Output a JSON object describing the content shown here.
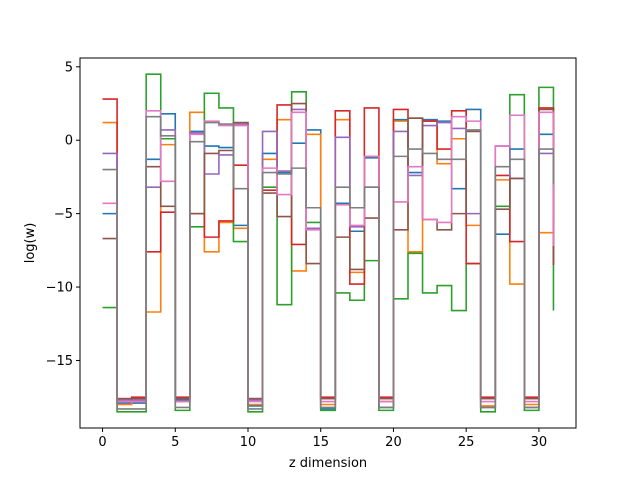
{
  "chart_data": {
    "type": "line",
    "step": "post",
    "xlabel": "z dimension",
    "ylabel": "log(w)",
    "xlim": [
      -1.55,
      32.55
    ],
    "ylim": [
      -19.6,
      5.6
    ],
    "xticks": [
      0,
      5,
      10,
      15,
      20,
      25,
      30
    ],
    "yticks": [
      5,
      0,
      -5,
      -10,
      -15
    ],
    "ytick_labels": [
      "5",
      "0",
      "−5",
      "−10",
      "−15"
    ],
    "grid": false,
    "colors": [
      "#1f77b4",
      "#ff7f0e",
      "#2ca02c",
      "#d62728",
      "#9467bd",
      "#8c564b",
      "#e377c2",
      "#7f7f7f"
    ],
    "series": [
      {
        "values": [
          -5.0,
          -17.9,
          -17.9,
          -1.3,
          1.8,
          -17.7,
          0.6,
          -0.4,
          -0.5,
          -5.8,
          -18.1,
          -0.9,
          -2.2,
          -0.2,
          0.7,
          -18.3,
          -4.3,
          -6.2,
          -1.2,
          -18.2,
          1.4,
          -2.2,
          1.4,
          1.3,
          -3.3,
          2.1,
          -18.2,
          -6.4,
          -0.6,
          -18.2,
          0.4,
          -5.7
        ]
      },
      {
        "values": [
          1.2,
          -18.0,
          -17.8,
          -11.7,
          -0.3,
          -17.8,
          1.9,
          -7.6,
          -5.6,
          -6.0,
          -18.0,
          -1.3,
          1.4,
          -8.9,
          0.4,
          -18.0,
          1.4,
          -9.0,
          -1.1,
          -17.8,
          1.3,
          -7.6,
          1.3,
          -1.6,
          0.1,
          -5.8,
          -18.1,
          -2.7,
          -9.8,
          -18.0,
          -6.3,
          -8.2
        ]
      },
      {
        "values": [
          -11.4,
          -18.5,
          -18.5,
          4.5,
          0.1,
          -18.4,
          -5.9,
          3.2,
          2.2,
          -6.9,
          -18.5,
          -3.2,
          -11.2,
          3.3,
          -5.6,
          -18.4,
          -10.4,
          -10.9,
          -8.2,
          -18.4,
          -10.8,
          -7.7,
          -10.4,
          -9.9,
          -11.6,
          -8.4,
          -18.5,
          -4.5,
          3.1,
          -18.4,
          3.6,
          -11.6
        ]
      },
      {
        "values": [
          2.8,
          -17.6,
          -17.5,
          -7.6,
          -4.9,
          -17.5,
          -5.0,
          -6.6,
          -5.5,
          -1.7,
          -17.6,
          -3.4,
          2.4,
          -7.1,
          -6.0,
          -17.5,
          2.0,
          -9.8,
          2.2,
          -17.5,
          2.1,
          1.5,
          1.3,
          -0.6,
          2.0,
          -8.4,
          -17.5,
          -2.4,
          -6.9,
          -17.5,
          2.2,
          -8.5
        ]
      },
      {
        "values": [
          -0.9,
          -17.7,
          -17.7,
          -3.2,
          0.7,
          -17.6,
          0.5,
          -2.3,
          -1.0,
          1.1,
          -17.7,
          0.6,
          -2.1,
          2.1,
          -6.0,
          -17.6,
          0.2,
          -5.9,
          -3.2,
          -17.6,
          0.6,
          -2.4,
          1.0,
          1.2,
          0.8,
          -5.0,
          -17.6,
          -0.4,
          -2.6,
          -17.6,
          -0.9,
          -2.9
        ]
      },
      {
        "values": [
          -6.7,
          -17.6,
          -17.6,
          -1.8,
          -4.5,
          -17.6,
          -5.0,
          -0.9,
          -0.7,
          1.2,
          -17.6,
          -3.6,
          -5.2,
          2.5,
          -8.4,
          -17.6,
          -6.6,
          -8.8,
          -5.3,
          -17.6,
          -6.1,
          1.5,
          -5.4,
          -6.1,
          -5.0,
          0.6,
          -17.6,
          -4.7,
          -2.6,
          -17.6,
          2.1,
          -8.4
        ]
      },
      {
        "values": [
          -4.3,
          -17.8,
          -17.8,
          2.0,
          -2.8,
          -17.8,
          0.4,
          1.3,
          1.0,
          1.0,
          -17.8,
          -1.9,
          -3.7,
          1.9,
          -6.1,
          -17.8,
          -4.4,
          -5.8,
          -1.1,
          -17.8,
          -4.2,
          -1.8,
          -5.4,
          -5.6,
          1.6,
          1.3,
          -17.8,
          -0.4,
          1.7,
          -17.8,
          1.9,
          -7.2
        ]
      },
      {
        "values": [
          -2.0,
          -18.3,
          -18.3,
          1.6,
          0.3,
          -18.2,
          -0.1,
          1.2,
          1.1,
          -3.3,
          -18.3,
          -2.2,
          -2.3,
          -1.9,
          -4.6,
          -18.2,
          -3.2,
          -4.6,
          -3.2,
          -18.2,
          -1.1,
          -0.6,
          -0.9,
          -1.3,
          -1.3,
          0.7,
          -18.2,
          -1.8,
          -1.3,
          -18.2,
          -0.6,
          -3.0
        ]
      }
    ]
  }
}
